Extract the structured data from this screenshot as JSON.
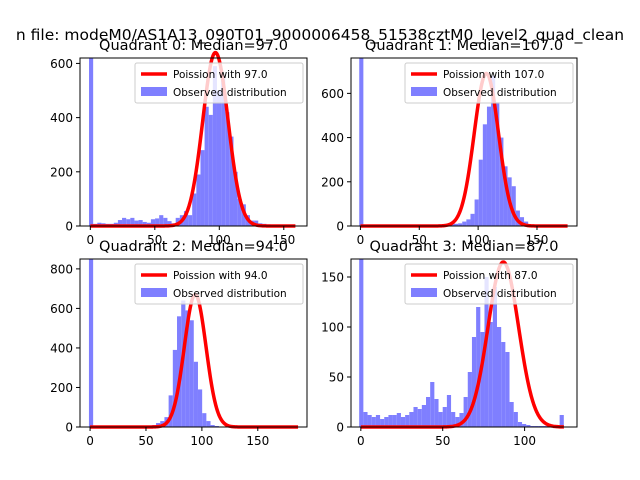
{
  "suptitle": "n file: modeM0/AS1A13_090T01_9000006458_51538cztM0_level2_quad_clean",
  "colors": {
    "hist": "#7f7fff",
    "fit": "#ff0000"
  },
  "chart_data": [
    {
      "type": "bar",
      "title": "Quadrant 0: Median=97.0",
      "legend": {
        "fit_label": "Poission with 97.0",
        "hist_label": "Observed distribution",
        "placement": "upper-right"
      },
      "xlim": [
        -8,
        168
      ],
      "ylim": [
        0,
        620
      ],
      "xticks": [
        0,
        50,
        100,
        150
      ],
      "yticks": [
        0,
        200,
        400,
        600
      ],
      "bin_start": -1,
      "bin_width": 3.2,
      "counts": [
        620,
        8,
        12,
        10,
        8,
        8,
        12,
        22,
        30,
        25,
        30,
        20,
        22,
        15,
        12,
        25,
        28,
        40,
        30,
        18,
        10,
        30,
        40,
        55,
        40,
        120,
        190,
        280,
        440,
        410,
        590,
        500,
        550,
        420,
        330,
        200,
        100,
        80,
        40,
        20,
        20,
        10,
        8,
        6,
        5,
        3,
        2,
        1,
        1,
        0
      ],
      "fit": {
        "mu": 97,
        "amp": 640,
        "sigma": 9.85,
        "x_range": [
          0,
          159
        ]
      }
    },
    {
      "type": "bar",
      "title": "Quadrant 1: Median=107.0",
      "legend": {
        "fit_label": "Poission with 107.0",
        "hist_label": "Observed distribution",
        "placement": "upper-right"
      },
      "xlim": [
        -8,
        184
      ],
      "ylim": [
        0,
        760
      ],
      "xticks": [
        0,
        50,
        100,
        150
      ],
      "yticks": [
        0,
        200,
        400,
        600
      ],
      "bin_start": -1,
      "bin_width": 3.5,
      "counts": [
        760,
        0,
        0,
        0,
        0,
        0,
        0,
        0,
        0,
        0,
        0,
        0,
        0,
        0,
        0,
        0,
        0,
        0,
        0,
        0,
        5,
        5,
        8,
        10,
        12,
        20,
        30,
        55,
        120,
        300,
        460,
        540,
        680,
        560,
        400,
        270,
        220,
        180,
        70,
        40,
        20,
        5,
        5,
        5,
        5,
        2,
        1,
        1,
        1,
        0
      ],
      "fit": {
        "mu": 107,
        "amp": 690,
        "sigma": 10.34,
        "x_range": [
          0,
          176
        ]
      }
    },
    {
      "type": "bar",
      "title": "Quadrant 2: Median=94.0",
      "legend": {
        "fit_label": "Poission with 94.0",
        "hist_label": "Observed distribution",
        "placement": "upper-right"
      },
      "xlim": [
        -9,
        194
      ],
      "ylim": [
        0,
        850
      ],
      "xticks": [
        0,
        50,
        100,
        150
      ],
      "yticks": [
        0,
        200,
        400,
        600,
        800
      ],
      "bin_start": -1,
      "bin_width": 3.75,
      "counts": [
        850,
        0,
        0,
        0,
        0,
        0,
        0,
        0,
        0,
        0,
        0,
        0,
        0,
        0,
        3,
        10,
        20,
        30,
        50,
        160,
        390,
        560,
        640,
        590,
        540,
        330,
        190,
        70,
        30,
        10,
        5,
        2,
        1,
        1,
        0,
        0,
        0,
        0,
        0,
        0,
        0,
        0,
        0,
        0,
        0,
        0,
        0,
        0,
        0,
        0
      ],
      "fit": {
        "mu": 94,
        "amp": 670,
        "sigma": 9.7,
        "x_range": [
          0,
          186
        ]
      }
    },
    {
      "type": "bar",
      "title": "Quadrant 3: Median=87.0",
      "legend": {
        "fit_label": "Poission with 87.0",
        "hist_label": "Observed distribution",
        "placement": "upper-right"
      },
      "xlim": [
        -6,
        132
      ],
      "ylim": [
        0,
        168
      ],
      "xticks": [
        0,
        50,
        100
      ],
      "yticks": [
        0,
        50,
        100,
        150
      ],
      "bin_start": -1,
      "bin_width": 2.55,
      "counts": [
        168,
        15,
        12,
        10,
        12,
        8,
        10,
        12,
        12,
        14,
        10,
        12,
        15,
        20,
        18,
        22,
        30,
        45,
        28,
        15,
        20,
        32,
        15,
        10,
        14,
        30,
        55,
        90,
        120,
        95,
        150,
        105,
        140,
        100,
        85,
        75,
        25,
        15,
        5,
        3,
        2,
        1,
        1,
        1,
        1,
        1,
        1,
        1,
        12,
        0
      ],
      "fit": {
        "mu": 87,
        "amp": 165,
        "sigma": 9.33,
        "x_range": [
          0,
          124
        ]
      }
    }
  ]
}
